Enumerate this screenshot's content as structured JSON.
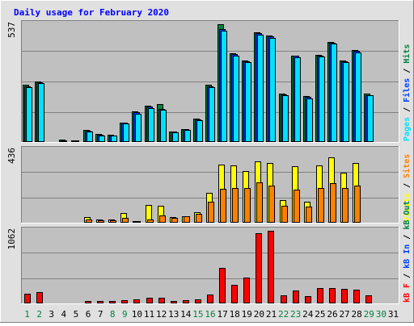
{
  "title": "Daily usage for February 2020",
  "colors": {
    "background": "#e0e0e0",
    "plot": "#c0c0c0",
    "title": "#0000ff",
    "hits": "#008040",
    "files": "#0040ff",
    "pages": "#00e0ff",
    "visits": "#ffff00",
    "sites": "#ff8000",
    "kbout": "#ff8000",
    "kbin": "#0040ff",
    "kbf": "#ff0000",
    "weekend": "#008040",
    "weekday": "#000000"
  },
  "chart_data": [
    {
      "type": "bar",
      "panel": "hits-files-pages",
      "max_label": "537",
      "right_label_parts": [
        {
          "text": "Pages",
          "color": "#00e0ff"
        },
        {
          "text": " / ",
          "color": "#000000"
        },
        {
          "text": "Files",
          "color": "#0040ff"
        },
        {
          "text": " / ",
          "color": "#000000"
        },
        {
          "text": "Hits",
          "color": "#008040"
        }
      ],
      "ylim": [
        0,
        537
      ],
      "categories": [
        "1",
        "2",
        "3",
        "4",
        "5",
        "6",
        "7",
        "8",
        "9",
        "10",
        "11",
        "12",
        "13",
        "14",
        "15",
        "16",
        "17",
        "18",
        "19",
        "20",
        "21",
        "22",
        "23",
        "24",
        "25",
        "26",
        "27",
        "28",
        "29",
        "30",
        "31"
      ],
      "series": [
        {
          "name": "Hits",
          "color": "#008040",
          "values": [
            260,
            275,
            0,
            10,
            8,
            55,
            35,
            32,
            90,
            138,
            165,
            172,
            48,
            60,
            105,
            260,
            537,
            405,
            372,
            500,
            485,
            222,
            395,
            208,
            398,
            455,
            372,
            420,
            220,
            0,
            0
          ]
        },
        {
          "name": "Files",
          "color": "#0040ff",
          "values": [
            255,
            272,
            0,
            8,
            6,
            52,
            32,
            30,
            88,
            135,
            160,
            150,
            46,
            58,
            102,
            255,
            515,
            400,
            368,
            495,
            480,
            218,
            392,
            205,
            395,
            452,
            368,
            415,
            215,
            0,
            0
          ]
        },
        {
          "name": "Pages",
          "color": "#00e0ff",
          "values": [
            250,
            268,
            0,
            5,
            4,
            48,
            30,
            28,
            85,
            130,
            155,
            148,
            44,
            55,
            98,
            250,
            508,
            395,
            365,
            490,
            475,
            215,
            388,
            200,
            390,
            448,
            365,
            410,
            212,
            0,
            0
          ]
        }
      ]
    },
    {
      "type": "bar",
      "panel": "visits-sites",
      "max_label": "436",
      "right_label_parts": [
        {
          "text": "Visits",
          "color": "#ffff00"
        },
        {
          "text": " / ",
          "color": "#000000"
        },
        {
          "text": "Sites",
          "color": "#ff8000"
        }
      ],
      "ylim": [
        0,
        436
      ],
      "categories": [
        "1",
        "2",
        "3",
        "4",
        "5",
        "6",
        "7",
        "8",
        "9",
        "10",
        "11",
        "12",
        "13",
        "14",
        "15",
        "16",
        "17",
        "18",
        "19",
        "20",
        "21",
        "22",
        "23",
        "24",
        "25",
        "26",
        "27",
        "28",
        "29",
        "30",
        "31"
      ],
      "series": [
        {
          "name": "Visits",
          "color": "#ffff00",
          "values": [
            5,
            5,
            0,
            3,
            3,
            35,
            18,
            20,
            60,
            12,
            105,
            100,
            35,
            40,
            65,
            180,
            350,
            345,
            310,
            370,
            360,
            135,
            340,
            125,
            345,
            390,
            300,
            360,
            5,
            0,
            0
          ]
        },
        {
          "name": "Sites",
          "color": "#ff8000",
          "values": [
            5,
            5,
            0,
            3,
            3,
            18,
            14,
            14,
            30,
            8,
            18,
            42,
            28,
            38,
            55,
            125,
            205,
            210,
            210,
            240,
            225,
            100,
            200,
            95,
            210,
            235,
            210,
            225,
            5,
            0,
            0
          ]
        }
      ]
    },
    {
      "type": "bar",
      "panel": "kbytes",
      "max_label": "1062",
      "right_label_parts": [
        {
          "text": "kB F",
          "color": "#ff0000"
        },
        {
          "text": " / ",
          "color": "#000000"
        },
        {
          "text": "kB In",
          "color": "#0040ff"
        },
        {
          "text": " / ",
          "color": "#000000"
        },
        {
          "text": "kB Out",
          "color": "#008040"
        }
      ],
      "ylim": [
        0,
        1062
      ],
      "categories": [
        "1",
        "2",
        "3",
        "4",
        "5",
        "6",
        "7",
        "8",
        "9",
        "10",
        "11",
        "12",
        "13",
        "14",
        "15",
        "16",
        "17",
        "18",
        "19",
        "20",
        "21",
        "22",
        "23",
        "24",
        "25",
        "26",
        "27",
        "28",
        "29",
        "30",
        "31"
      ],
      "series": [
        {
          "name": "kB F",
          "color": "#ff0000",
          "values": [
            145,
            160,
            0,
            15,
            15,
            30,
            30,
            30,
            50,
            60,
            85,
            85,
            40,
            50,
            55,
            135,
            515,
            275,
            375,
            1030,
            1062,
            115,
            190,
            105,
            220,
            225,
            210,
            195,
            115,
            0,
            0
          ]
        }
      ],
      "weekend_days": [
        1,
        2,
        8,
        9,
        15,
        16,
        22,
        23,
        29,
        30
      ]
    }
  ]
}
